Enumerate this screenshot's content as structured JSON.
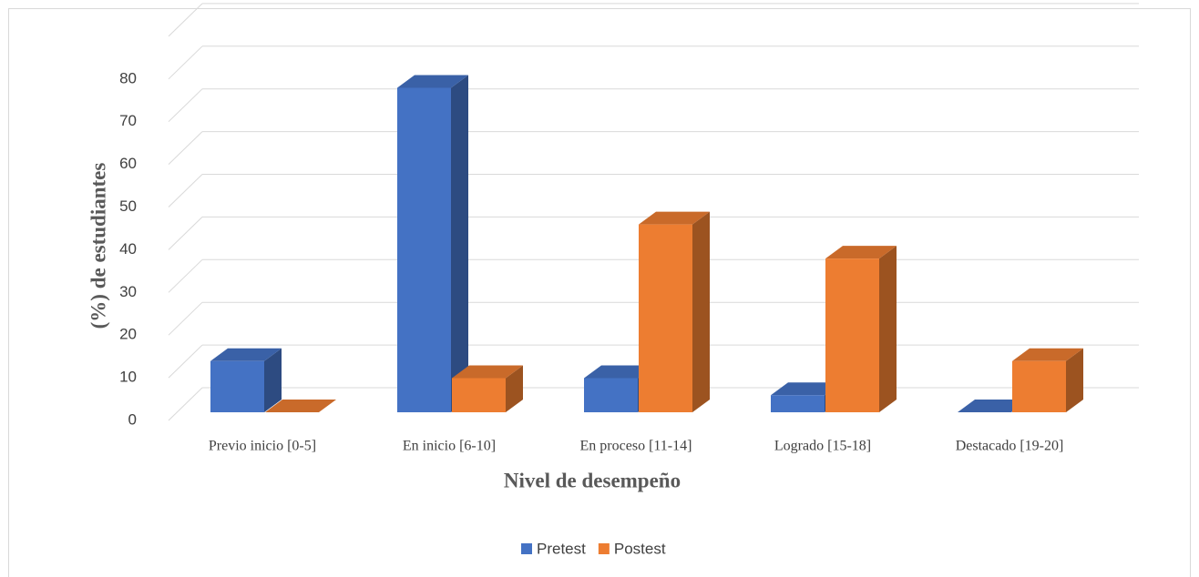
{
  "chart_data": {
    "type": "bar3d",
    "x_label": "Nivel de desempeño",
    "y_label": "(%) de estudiantes",
    "categories": [
      "Previo inicio [0-5]",
      "En inicio [6-10]",
      "En proceso [11-14]",
      "Logrado [15-18]",
      "Destacado [19-20]"
    ],
    "series": [
      {
        "name": "Pretest",
        "color": "#4472c4",
        "values": [
          12,
          76,
          8,
          4,
          0
        ]
      },
      {
        "name": "Postest",
        "color": "#ed7d31",
        "values": [
          0,
          8,
          44,
          36,
          12
        ]
      }
    ],
    "ylim": [
      0,
      90
    ],
    "yticks": [
      0,
      10,
      20,
      30,
      40,
      50,
      60,
      70,
      80
    ],
    "grid": true,
    "legend": "bottom"
  }
}
